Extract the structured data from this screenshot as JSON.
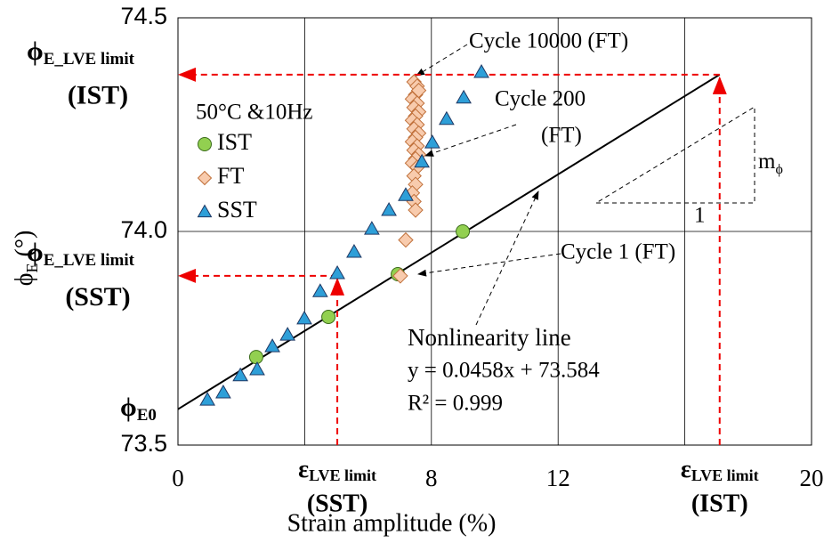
{
  "chart_data": {
    "type": "scatter",
    "x_label": "Strain amplitude (%)",
    "y_label": {
      "symbol": "ϕ",
      "sub": "E",
      "unit": " (°)"
    },
    "xlim": [
      0,
      20
    ],
    "ylim": [
      73.5,
      74.5
    ],
    "xticks": [
      0,
      8,
      12,
      20
    ],
    "xgrid": [
      4,
      8,
      12,
      16
    ],
    "yticks": [
      73.5,
      {
        "value": 74,
        "label": "74.0"
      },
      74.5
    ],
    "legend_title": "50°C &10Hz",
    "series": [
      {
        "name": "IST",
        "marker": "circle",
        "color": "#92d050",
        "edge": "#3a6b1a",
        "x": [
          2.47,
          4.75,
          6.94,
          8.99
        ],
        "y": [
          73.706,
          73.8,
          73.9,
          74.0
        ]
      },
      {
        "name": "FT",
        "marker": "diamond",
        "color": "#f8cbad",
        "edge": "#c0703a",
        "x": [
          7.45,
          7.55,
          7.5,
          7.6,
          7.4,
          7.55,
          7.45,
          7.6,
          7.5,
          7.4,
          7.55,
          7.45,
          7.6,
          7.5,
          7.4,
          7.55,
          7.45,
          7.6,
          7.5,
          7.4,
          7.55,
          7.45,
          7.5,
          7.4,
          7.45,
          7.5,
          7.19,
          7.02
        ],
        "y": [
          74.35,
          74.34,
          74.32,
          74.33,
          74.31,
          74.3,
          74.29,
          74.28,
          74.27,
          74.26,
          74.25,
          74.24,
          74.23,
          74.22,
          74.21,
          74.2,
          74.19,
          74.18,
          74.17,
          74.16,
          74.15,
          74.13,
          74.11,
          74.09,
          74.07,
          74.05,
          73.98,
          73.896
        ]
      },
      {
        "name": "SST",
        "marker": "triangle",
        "color": "#2e9fd8",
        "edge": "#1f3864",
        "x": [
          0.93,
          1.43,
          1.97,
          2.5,
          2.98,
          3.46,
          3.99,
          4.49,
          5.03,
          5.56,
          6.12,
          6.66,
          7.19,
          7.7,
          8.03,
          8.48,
          9.02,
          9.58
        ],
        "y": [
          73.606,
          73.623,
          73.663,
          73.677,
          73.731,
          73.758,
          73.796,
          73.86,
          73.902,
          73.952,
          74.006,
          74.05,
          74.085,
          74.163,
          74.208,
          74.263,
          74.313,
          74.373
        ]
      }
    ],
    "trendline": {
      "slope": 0.0458,
      "intercept": 73.584,
      "x_range": [
        0,
        17.1
      ]
    },
    "limits": [
      {
        "x": 17.1,
        "y": 74.367,
        "phi_label": {
          "symbol": "ϕ",
          "sub": "E_LVE limit",
          "tag": "(IST)"
        },
        "eps_label": {
          "symbol": "ε",
          "sub": "LVE limit",
          "tag": "(IST)"
        }
      },
      {
        "x": 5.03,
        "y": 73.896,
        "phi_label": {
          "symbol": "ϕ",
          "sub": "E_LVE limit",
          "tag": "(SST)"
        },
        "eps_label": {
          "symbol": "ε",
          "sub": "LVE limit",
          "tag": "(SST)"
        }
      }
    ],
    "phi_e0": {
      "symbol": "ϕ",
      "sub": "E0"
    },
    "annotations": {
      "cycle_10000": "Cycle 10000 (FT)",
      "cycle_200": "Cycle 200",
      "cycle_200_ft": "(FT)",
      "cycle_1": "Cycle 1 (FT)",
      "nonlinearity": "Nonlinearity line",
      "equation": "y = 0.0458x + 73.584",
      "r2": "R² = 0.999",
      "slope_symbol": "m",
      "slope_sub": "ϕ",
      "slope_run": "1"
    }
  }
}
